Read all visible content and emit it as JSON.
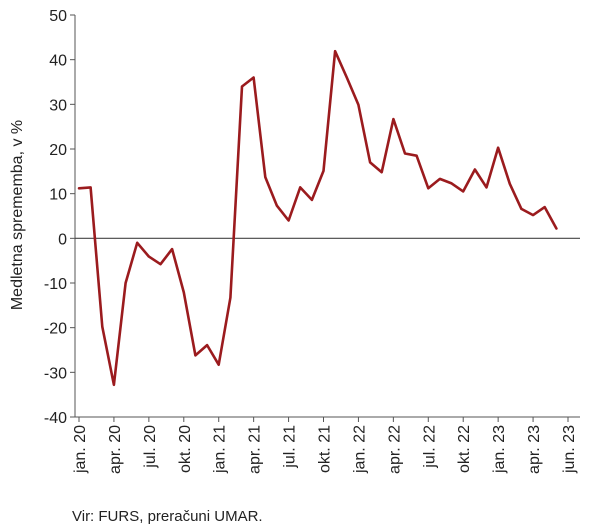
{
  "chart_data": {
    "type": "line",
    "ylabel": "Medletna sprememba, v %",
    "ylim": [
      -40,
      50
    ],
    "yticks": [
      -40,
      -30,
      -20,
      -10,
      0,
      10,
      20,
      30,
      40,
      50
    ],
    "grid": false,
    "categories": [
      "jan. 20",
      "feb. 20",
      "mar. 20",
      "apr. 20",
      "maj 20",
      "jun. 20",
      "jul. 20",
      "avg. 20",
      "sep. 20",
      "okt. 20",
      "nov. 20",
      "dec. 20",
      "jan. 21",
      "feb. 21",
      "mar. 21",
      "apr. 21",
      "maj 21",
      "jun. 21",
      "jul. 21",
      "avg. 21",
      "sep. 21",
      "okt. 21",
      "nov. 21",
      "dec. 21",
      "jan. 22",
      "feb. 22",
      "mar. 22",
      "apr. 22",
      "maj 22",
      "jun. 22",
      "jul. 22",
      "avg. 22",
      "sep. 22",
      "okt. 22",
      "nov. 22",
      "dec. 22",
      "jan. 23",
      "feb. 23",
      "mar. 23",
      "apr. 23",
      "maj 23",
      "jun. 23"
    ],
    "xtick_labels": [
      {
        "index": 0,
        "label": "jan. 20"
      },
      {
        "index": 3,
        "label": "apr. 20"
      },
      {
        "index": 6,
        "label": "jul. 20"
      },
      {
        "index": 9,
        "label": "okt. 20"
      },
      {
        "index": 12,
        "label": "jan. 21"
      },
      {
        "index": 15,
        "label": "apr. 21"
      },
      {
        "index": 18,
        "label": "jul. 21"
      },
      {
        "index": 21,
        "label": "okt. 21"
      },
      {
        "index": 24,
        "label": "jan. 22"
      },
      {
        "index": 27,
        "label": "apr. 22"
      },
      {
        "index": 30,
        "label": "jul. 22"
      },
      {
        "index": 33,
        "label": "okt. 22"
      },
      {
        "index": 36,
        "label": "jan. 23"
      },
      {
        "index": 39,
        "label": "apr. 23"
      },
      {
        "index": 42,
        "label": "jun. 23"
      }
    ],
    "series": [
      {
        "color": "#9b1b1e",
        "values": [
          11.2,
          11.4,
          -19.8,
          -32.8,
          -10.0,
          -1.0,
          -4.1,
          -5.8,
          -2.4,
          -12.1,
          -26.2,
          -23.9,
          -28.3,
          -13.3,
          34.0,
          36.0,
          13.7,
          7.3,
          4.0,
          11.4,
          8.6,
          15.1,
          41.9,
          36.0,
          29.9,
          17.0,
          14.8,
          26.7,
          19.0,
          18.5,
          11.2,
          13.3,
          12.3,
          10.5,
          15.4,
          11.4,
          20.3,
          12.2,
          6.6,
          5.2,
          7.0,
          2.2
        ]
      }
    ]
  },
  "source": "Vir: FURS, preračuni UMAR."
}
